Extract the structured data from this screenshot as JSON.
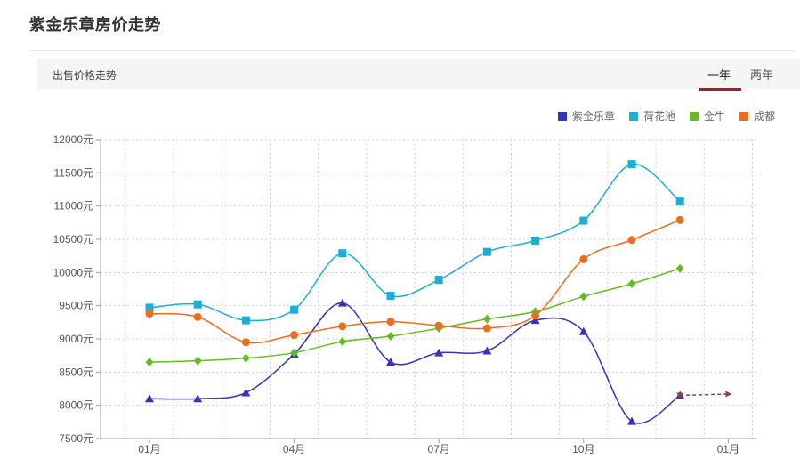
{
  "page": {
    "title": "紫金乐章房价走势",
    "subtitle": "出售价格走势",
    "tabs": [
      {
        "label": "一年",
        "active": true
      },
      {
        "label": "两年",
        "active": false
      }
    ]
  },
  "chart_data": {
    "type": "line",
    "title": "",
    "xlabel": "",
    "ylabel": "",
    "ylim": [
      7500,
      12000
    ],
    "yticks": [
      7500,
      8000,
      8500,
      9000,
      9500,
      10000,
      10500,
      11000,
      11500,
      12000
    ],
    "ytick_suffix": "元",
    "xtick_labels": [
      {
        "index": 0,
        "label": "01月"
      },
      {
        "index": 3,
        "label": "04月"
      },
      {
        "index": 6,
        "label": "07月"
      },
      {
        "index": 9,
        "label": "10月"
      },
      {
        "index": 12,
        "label": "01月"
      }
    ],
    "grid": true,
    "legend_position": "top-right",
    "series": [
      {
        "name": "紫金乐章",
        "color": "#3333bb",
        "marker": "triangle",
        "values": [
          8100,
          8100,
          8190,
          8770,
          9540,
          8650,
          8790,
          8820,
          9280,
          9110,
          7760,
          8150
        ]
      },
      {
        "name": "荷花池",
        "color": "#1aaed8",
        "marker": "square",
        "values": [
          9470,
          9520,
          9280,
          9440,
          10290,
          9650,
          9890,
          10310,
          10480,
          10780,
          11630,
          11070
        ]
      },
      {
        "name": "金牛",
        "color": "#66bb22",
        "marker": "diamond",
        "values": [
          8650,
          8670,
          8710,
          8790,
          8960,
          9040,
          9160,
          9300,
          9410,
          9640,
          9830,
          10060
        ]
      },
      {
        "name": "成都",
        "color": "#ee6d1c",
        "marker": "circle",
        "values": [
          9380,
          9330,
          8950,
          9060,
          9190,
          9260,
          9200,
          9160,
          9350,
          10200,
          10490,
          10790
        ]
      }
    ],
    "forecast": {
      "from_index": 11,
      "to_index": 12,
      "values": [
        8150,
        8170
      ],
      "color": "#884444"
    }
  }
}
